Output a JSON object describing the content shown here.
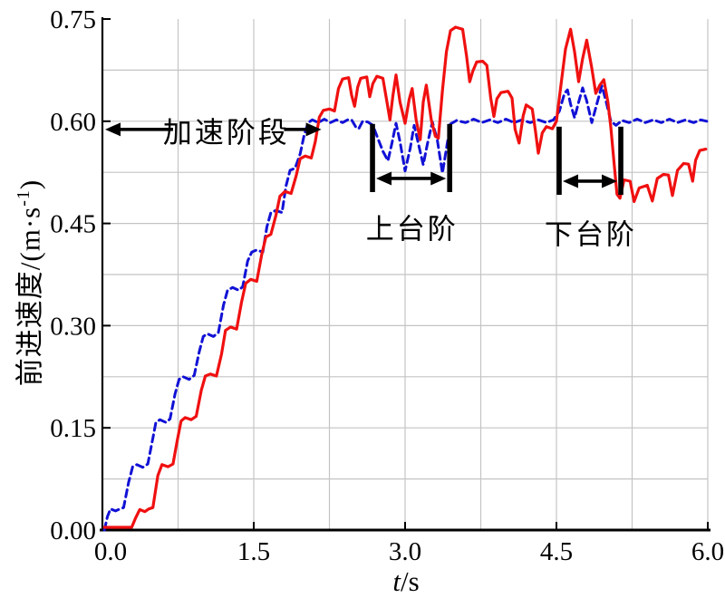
{
  "figure": {
    "background": "#ffffff"
  },
  "axis_titles": {
    "x_var": "t",
    "x_rest": "/s",
    "y_main": "前进速度/(m·s",
    "y_sup": "-1",
    "y_close": ")"
  },
  "annotations_text": {
    "accel": "加速阶段",
    "up_steps": "上台阶",
    "down_steps": "下台阶"
  },
  "chart_data": {
    "type": "line",
    "title": "",
    "xlabel": "t/s",
    "ylabel": "前进速度/(m·s⁻¹)",
    "xlim": [
      0,
      6
    ],
    "ylim": [
      0,
      0.75
    ],
    "x_tick_values": [
      0,
      1.5,
      3,
      4.5,
      6
    ],
    "x_tick_labels": [
      "0.0",
      "1.5",
      "3.0",
      "4.5",
      "6.0"
    ],
    "y_tick_values": [
      0,
      0.15,
      0.3,
      0.45,
      0.6,
      0.75
    ],
    "y_tick_labels": [
      "0.00",
      "0.15",
      "0.30",
      "0.45",
      "0.60",
      "0.75"
    ],
    "x_grid_step": 0.75,
    "y_grid_step": 0.075,
    "grid": true,
    "grid_color": "#c4c4c4",
    "axis_color": "#000000",
    "legend": "none",
    "series": [
      {
        "name": "dashed-blue-reference-velocity",
        "color": "#1111d6",
        "style": "dashed",
        "width": 3,
        "points": [
          [
            0.02,
            0.0
          ],
          [
            0.05,
            0.02
          ],
          [
            0.08,
            0.031
          ],
          [
            0.13,
            0.028
          ],
          [
            0.16,
            0.03
          ],
          [
            0.21,
            0.033
          ],
          [
            0.26,
            0.07
          ],
          [
            0.3,
            0.093
          ],
          [
            0.34,
            0.096
          ],
          [
            0.4,
            0.092
          ],
          [
            0.45,
            0.097
          ],
          [
            0.5,
            0.135
          ],
          [
            0.53,
            0.158
          ],
          [
            0.57,
            0.162
          ],
          [
            0.63,
            0.158
          ],
          [
            0.67,
            0.163
          ],
          [
            0.72,
            0.2
          ],
          [
            0.76,
            0.221
          ],
          [
            0.8,
            0.225
          ],
          [
            0.86,
            0.221
          ],
          [
            0.91,
            0.227
          ],
          [
            0.96,
            0.262
          ],
          [
            1.0,
            0.284
          ],
          [
            1.04,
            0.288
          ],
          [
            1.1,
            0.284
          ],
          [
            1.15,
            0.29
          ],
          [
            1.2,
            0.33
          ],
          [
            1.24,
            0.352
          ],
          [
            1.29,
            0.356
          ],
          [
            1.35,
            0.352
          ],
          [
            1.39,
            0.357
          ],
          [
            1.44,
            0.395
          ],
          [
            1.48,
            0.408
          ],
          [
            1.53,
            0.411
          ],
          [
            1.59,
            0.408
          ],
          [
            1.63,
            0.445
          ],
          [
            1.67,
            0.466
          ],
          [
            1.72,
            0.469
          ],
          [
            1.78,
            0.466
          ],
          [
            1.82,
            0.505
          ],
          [
            1.86,
            0.528
          ],
          [
            1.91,
            0.531
          ],
          [
            1.96,
            0.552
          ],
          [
            2.0,
            0.58
          ],
          [
            2.04,
            0.598
          ],
          [
            2.08,
            0.602
          ],
          [
            2.14,
            0.598
          ],
          [
            2.2,
            0.603
          ],
          [
            2.26,
            0.598
          ],
          [
            2.32,
            0.602
          ],
          [
            2.38,
            0.598
          ],
          [
            2.43,
            0.602
          ],
          [
            2.47,
            0.602
          ],
          [
            2.51,
            0.592
          ],
          [
            2.54,
            0.589
          ],
          [
            2.58,
            0.6
          ],
          [
            2.63,
            0.599
          ],
          [
            2.68,
            0.594
          ],
          [
            2.73,
            0.575
          ],
          [
            2.78,
            0.556
          ],
          [
            2.83,
            0.542
          ],
          [
            2.87,
            0.568
          ],
          [
            2.91,
            0.597
          ],
          [
            2.95,
            0.57
          ],
          [
            3.0,
            0.527
          ],
          [
            3.05,
            0.56
          ],
          [
            3.09,
            0.594
          ],
          [
            3.13,
            0.568
          ],
          [
            3.18,
            0.536
          ],
          [
            3.22,
            0.566
          ],
          [
            3.27,
            0.599
          ],
          [
            3.32,
            0.572
          ],
          [
            3.37,
            0.524
          ],
          [
            3.41,
            0.56
          ],
          [
            3.45,
            0.596
          ],
          [
            3.51,
            0.601
          ],
          [
            3.6,
            0.598
          ],
          [
            3.68,
            0.603
          ],
          [
            3.76,
            0.598
          ],
          [
            3.84,
            0.602
          ],
          [
            3.92,
            0.598
          ],
          [
            4.0,
            0.603
          ],
          [
            4.08,
            0.598
          ],
          [
            4.16,
            0.602
          ],
          [
            4.24,
            0.598
          ],
          [
            4.32,
            0.602
          ],
          [
            4.4,
            0.598
          ],
          [
            4.47,
            0.602
          ],
          [
            4.53,
            0.615
          ],
          [
            4.58,
            0.641
          ],
          [
            4.61,
            0.646
          ],
          [
            4.64,
            0.625
          ],
          [
            4.68,
            0.605
          ],
          [
            4.72,
            0.628
          ],
          [
            4.76,
            0.649
          ],
          [
            4.8,
            0.63
          ],
          [
            4.85,
            0.598
          ],
          [
            4.9,
            0.625
          ],
          [
            4.95,
            0.652
          ],
          [
            4.99,
            0.63
          ],
          [
            5.04,
            0.6
          ],
          [
            5.09,
            0.594
          ],
          [
            5.15,
            0.601
          ],
          [
            5.22,
            0.598
          ],
          [
            5.3,
            0.603
          ],
          [
            5.38,
            0.598
          ],
          [
            5.46,
            0.602
          ],
          [
            5.54,
            0.598
          ],
          [
            5.62,
            0.603
          ],
          [
            5.7,
            0.598
          ],
          [
            5.78,
            0.602
          ],
          [
            5.86,
            0.598
          ],
          [
            5.93,
            0.602
          ],
          [
            5.99,
            0.6
          ]
        ]
      },
      {
        "name": "solid-red-actual-velocity",
        "color": "#f01010",
        "style": "solid",
        "width": 3.2,
        "points": [
          [
            0.02,
            0.004
          ],
          [
            0.29,
            0.004
          ],
          [
            0.33,
            0.018
          ],
          [
            0.37,
            0.03
          ],
          [
            0.42,
            0.027
          ],
          [
            0.46,
            0.031
          ],
          [
            0.5,
            0.033
          ],
          [
            0.55,
            0.08
          ],
          [
            0.59,
            0.096
          ],
          [
            0.65,
            0.093
          ],
          [
            0.7,
            0.097
          ],
          [
            0.74,
            0.13
          ],
          [
            0.78,
            0.16
          ],
          [
            0.82,
            0.165
          ],
          [
            0.88,
            0.162
          ],
          [
            0.93,
            0.167
          ],
          [
            0.98,
            0.205
          ],
          [
            1.02,
            0.226
          ],
          [
            1.07,
            0.229
          ],
          [
            1.13,
            0.226
          ],
          [
            1.18,
            0.258
          ],
          [
            1.22,
            0.293
          ],
          [
            1.27,
            0.298
          ],
          [
            1.33,
            0.295
          ],
          [
            1.38,
            0.335
          ],
          [
            1.42,
            0.362
          ],
          [
            1.47,
            0.368
          ],
          [
            1.53,
            0.365
          ],
          [
            1.58,
            0.405
          ],
          [
            1.62,
            0.43
          ],
          [
            1.67,
            0.434
          ],
          [
            1.72,
            0.462
          ],
          [
            1.76,
            0.49
          ],
          [
            1.81,
            0.497
          ],
          [
            1.87,
            0.494
          ],
          [
            1.92,
            0.52
          ],
          [
            1.96,
            0.545
          ],
          [
            2.01,
            0.549
          ],
          [
            2.07,
            0.546
          ],
          [
            2.11,
            0.57
          ],
          [
            2.15,
            0.606
          ],
          [
            2.19,
            0.616
          ],
          [
            2.25,
            0.618
          ],
          [
            2.3,
            0.615
          ],
          [
            2.34,
            0.648
          ],
          [
            2.38,
            0.662
          ],
          [
            2.44,
            0.664
          ],
          [
            2.47,
            0.638
          ],
          [
            2.5,
            0.622
          ],
          [
            2.53,
            0.65
          ],
          [
            2.56,
            0.663
          ],
          [
            2.62,
            0.665
          ],
          [
            2.65,
            0.636
          ],
          [
            2.68,
            0.655
          ],
          [
            2.72,
            0.666
          ],
          [
            2.78,
            0.663
          ],
          [
            2.82,
            0.628
          ],
          [
            2.85,
            0.602
          ],
          [
            2.88,
            0.638
          ],
          [
            2.91,
            0.668
          ],
          [
            2.95,
            0.628
          ],
          [
            3.0,
            0.597
          ],
          [
            3.04,
            0.632
          ],
          [
            3.07,
            0.648
          ],
          [
            3.11,
            0.602
          ],
          [
            3.15,
            0.573
          ],
          [
            3.18,
            0.628
          ],
          [
            3.21,
            0.653
          ],
          [
            3.26,
            0.602
          ],
          [
            3.3,
            0.578
          ],
          [
            3.33,
            0.575
          ],
          [
            3.37,
            0.645
          ],
          [
            3.41,
            0.702
          ],
          [
            3.45,
            0.733
          ],
          [
            3.5,
            0.738
          ],
          [
            3.57,
            0.735
          ],
          [
            3.61,
            0.695
          ],
          [
            3.64,
            0.658
          ],
          [
            3.67,
            0.673
          ],
          [
            3.71,
            0.687
          ],
          [
            3.77,
            0.688
          ],
          [
            3.81,
            0.682
          ],
          [
            3.85,
            0.633
          ],
          [
            3.88,
            0.607
          ],
          [
            3.91,
            0.633
          ],
          [
            3.95,
            0.642
          ],
          [
            4.02,
            0.644
          ],
          [
            4.06,
            0.634
          ],
          [
            4.09,
            0.588
          ],
          [
            4.13,
            0.568
          ],
          [
            4.17,
            0.608
          ],
          [
            4.2,
            0.624
          ],
          [
            4.26,
            0.618
          ],
          [
            4.29,
            0.588
          ],
          [
            4.32,
            0.553
          ],
          [
            4.36,
            0.583
          ],
          [
            4.4,
            0.592
          ],
          [
            4.46,
            0.589
          ],
          [
            4.5,
            0.6
          ],
          [
            4.54,
            0.648
          ],
          [
            4.59,
            0.706
          ],
          [
            4.64,
            0.735
          ],
          [
            4.68,
            0.702
          ],
          [
            4.72,
            0.658
          ],
          [
            4.76,
            0.692
          ],
          [
            4.8,
            0.719
          ],
          [
            4.85,
            0.678
          ],
          [
            4.89,
            0.641
          ],
          [
            4.93,
            0.653
          ],
          [
            4.97,
            0.661
          ],
          [
            5.01,
            0.628
          ],
          [
            5.04,
            0.59
          ],
          [
            5.07,
            0.54
          ],
          [
            5.1,
            0.493
          ],
          [
            5.13,
            0.487
          ],
          [
            5.17,
            0.514
          ],
          [
            5.23,
            0.512
          ],
          [
            5.27,
            0.482
          ],
          [
            5.32,
            0.502
          ],
          [
            5.4,
            0.506
          ],
          [
            5.45,
            0.483
          ],
          [
            5.5,
            0.516
          ],
          [
            5.56,
            0.522
          ],
          [
            5.61,
            0.521
          ],
          [
            5.65,
            0.491
          ],
          [
            5.7,
            0.528
          ],
          [
            5.76,
            0.538
          ],
          [
            5.81,
            0.537
          ],
          [
            5.85,
            0.512
          ],
          [
            5.88,
            0.543
          ],
          [
            5.92,
            0.557
          ],
          [
            5.98,
            0.559
          ]
        ]
      }
    ],
    "annotations": {
      "accel": {
        "text": "加速阶段",
        "v": 0.588,
        "tip1_t": 0.027,
        "tail1_t": 0.7,
        "text_t": 1.23,
        "text_v": 0.587,
        "tail2_t": 1.8,
        "tip2_t": 2.17
      },
      "intervals": [
        {
          "text": "上台阶",
          "start_t": 2.677,
          "end_t": 3.442,
          "bar_top_v": 0.596,
          "bar_bot_v": 0.496,
          "arrow_v": 0.516,
          "label_t": 3.07,
          "label_v": 0.446
        },
        {
          "text": "下台阶",
          "start_t": 4.527,
          "end_t": 5.138,
          "bar_top_v": 0.592,
          "bar_bot_v": 0.492,
          "arrow_v": 0.512,
          "label_t": 4.84,
          "label_v": 0.437
        }
      ]
    }
  }
}
